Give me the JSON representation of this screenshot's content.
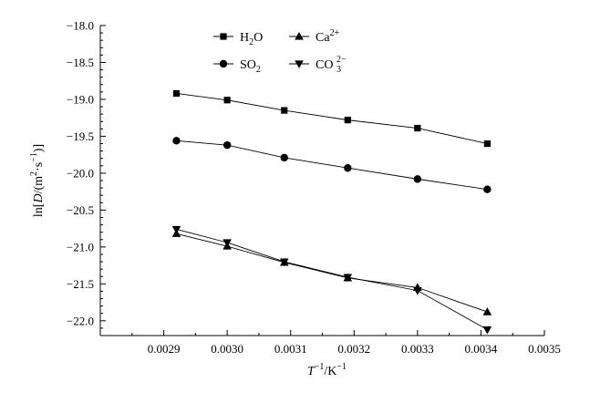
{
  "chart_data": {
    "type": "line",
    "xlabel_parts": {
      "base": "T",
      "sup": "−1",
      "suffix": "/K",
      "suffix_sup": "−1"
    },
    "ylabel_parts": {
      "prefix": "ln[",
      "italic": "D",
      "mid": "/(m",
      "sup1": "2",
      "dot": "·s",
      "sup2": "−1",
      "suffix": ")]"
    },
    "xlim": [
      0.0028,
      0.0035
    ],
    "ylim": [
      -22.2,
      -18.0
    ],
    "xticks": [
      "0.0029",
      "0.0030",
      "0.0031",
      "0.0032",
      "0.0033",
      "0.0034",
      "0.0035"
    ],
    "yticks": [
      "−18.0",
      "−18.5",
      "−19.0",
      "−19.5",
      "−20.0",
      "−20.5",
      "−21.0",
      "−21.5",
      "−22.0"
    ],
    "grid": false,
    "legend_position": "top-center",
    "x": [
      0.00292,
      0.003,
      0.00309,
      0.00319,
      0.0033,
      0.00341
    ],
    "series": [
      {
        "name_parts": {
          "base": "H",
          "sub": "2",
          "after": "O"
        },
        "marker": "square",
        "values": [
          -18.92,
          -19.01,
          -19.15,
          -19.28,
          -19.39,
          -19.6
        ]
      },
      {
        "name_parts": {
          "base": "SO",
          "sub": "2"
        },
        "marker": "circle",
        "values": [
          -19.56,
          -19.62,
          -19.79,
          -19.93,
          -20.08,
          -20.22
        ]
      },
      {
        "name_parts": {
          "base": "Ca",
          "sup": "2+"
        },
        "marker": "triangle-up",
        "values": [
          -20.82,
          -20.99,
          -21.21,
          -21.42,
          -21.55,
          -21.88
        ]
      },
      {
        "name_parts": {
          "base": "CO",
          "sub": "3",
          "sup": "2−"
        },
        "marker": "triangle-down",
        "values": [
          -20.76,
          -20.94,
          -21.2,
          -21.41,
          -21.59,
          -22.12
        ]
      }
    ]
  }
}
